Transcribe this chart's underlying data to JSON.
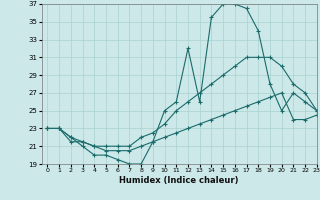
{
  "xlabel": "Humidex (Indice chaleur)",
  "bg_color": "#cce8e8",
  "grid_color": "#aad0d0",
  "line_color": "#1a6b6b",
  "xlim": [
    -0.5,
    23
  ],
  "ylim": [
    19,
    37
  ],
  "xticks": [
    0,
    1,
    2,
    3,
    4,
    5,
    6,
    7,
    8,
    9,
    10,
    11,
    12,
    13,
    14,
    15,
    16,
    17,
    18,
    19,
    20,
    21,
    22,
    23
  ],
  "yticks": [
    19,
    21,
    23,
    25,
    27,
    29,
    31,
    33,
    35,
    37
  ],
  "line1_x": [
    0,
    1,
    2,
    3,
    4,
    5,
    6,
    7,
    8,
    9,
    10,
    11,
    12,
    13,
    14,
    15,
    16,
    17,
    18,
    19,
    20,
    21,
    22,
    23
  ],
  "line1_y": [
    23,
    23,
    22,
    21,
    20,
    20,
    19.5,
    19,
    19,
    21.5,
    25,
    26,
    32,
    26,
    35.5,
    37,
    37,
    36.5,
    34,
    28,
    25,
    27,
    26,
    25
  ],
  "line2_x": [
    0,
    1,
    2,
    3,
    4,
    5,
    6,
    7,
    8,
    9,
    10,
    11,
    12,
    13,
    14,
    15,
    16,
    17,
    18,
    19,
    20,
    21,
    22,
    23
  ],
  "line2_y": [
    23,
    23,
    21.5,
    21.5,
    21,
    21,
    21,
    21,
    22,
    22.5,
    23.5,
    25,
    26,
    27,
    28,
    29,
    30,
    31,
    31,
    31,
    30,
    28,
    27,
    25
  ],
  "line3_x": [
    0,
    1,
    2,
    3,
    4,
    5,
    6,
    7,
    8,
    9,
    10,
    11,
    12,
    13,
    14,
    15,
    16,
    17,
    18,
    19,
    20,
    21,
    22,
    23
  ],
  "line3_y": [
    23,
    23,
    22,
    21.5,
    21,
    20.5,
    20.5,
    20.5,
    21,
    21.5,
    22,
    22.5,
    23,
    23.5,
    24,
    24.5,
    25,
    25.5,
    26,
    26.5,
    27,
    24,
    24,
    24.5
  ]
}
